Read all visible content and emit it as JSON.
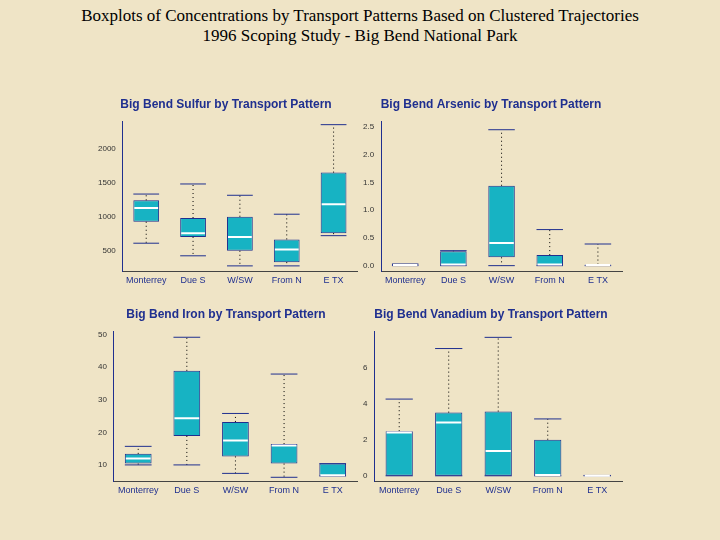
{
  "page_title": "Boxplots of Concentrations by Transport Patterns Based on Clustered Trajectories",
  "page_subtitle": "1996 Scoping Study - Big Bend National Park",
  "chart_data": [
    {
      "type": "boxplot",
      "title": "Big Bend Sulfur by Transport Pattern",
      "categories": [
        "Monterrey",
        "Due S",
        "W/SW",
        "From N",
        "E TX"
      ],
      "boxes": [
        {
          "min": 611,
          "q1": 926,
          "median": 1130,
          "q3": 1241,
          "max": 1333
        },
        {
          "min": 426,
          "q1": 704,
          "median": 759,
          "q3": 981,
          "max": 1481
        },
        {
          "min": 278,
          "q1": 500,
          "median": 704,
          "q3": 1000,
          "max": 1315
        },
        {
          "min": 278,
          "q1": 333,
          "median": 519,
          "q3": 667,
          "max": 1037
        },
        {
          "min": 722,
          "q1": 759,
          "median": 1185,
          "q3": 1648,
          "max": 2352
        }
      ],
      "color": "#17b3c3",
      "ylim": [
        200,
        2400
      ],
      "yticks": [
        500,
        1000,
        1500,
        2000
      ],
      "grid": false
    },
    {
      "type": "boxplot",
      "title": "Big Bend Arsenic by Transport Pattern",
      "categories": [
        "Monterrey",
        "Due S",
        "W/SW",
        "From N",
        "E TX"
      ],
      "boxes": [
        {
          "min": 0,
          "q1": 0,
          "median": 0.01,
          "q3": 0.03,
          "max": 0.03
        },
        {
          "min": 0,
          "q1": 0,
          "median": 0.02,
          "q3": 0.26,
          "max": 0.27
        },
        {
          "min": 0,
          "q1": 0.15,
          "median": 0.41,
          "q3": 1.44,
          "max": 2.45
        },
        {
          "min": 0,
          "q1": 0,
          "median": 0.02,
          "q3": 0.19,
          "max": 0.65
        },
        {
          "min": 0,
          "q1": 0,
          "median": 0.01,
          "q3": 0.02,
          "max": 0.39
        }
      ],
      "color": "#17b3c3",
      "ylim": [
        -0.1,
        2.6
      ],
      "yticks": [
        {
          "value": 0,
          "label": "0.0"
        },
        {
          "value": 0.5,
          "label": "0.5"
        },
        {
          "value": 1,
          "label": "1.0"
        },
        {
          "value": 1.5,
          "label": "1.5"
        },
        {
          "value": 2,
          "label": "2.0"
        },
        {
          "value": 2.5,
          "label": "2.5"
        }
      ],
      "grid": false
    },
    {
      "type": "boxplot",
      "title": "Big Bend Iron by Transport Pattern",
      "categories": [
        "Monterrey",
        "Due S",
        "W/SW",
        "From N",
        "E TX"
      ],
      "boxes": [
        {
          "min": 10,
          "q1": 10.4,
          "median": 12,
          "q3": 13.4,
          "max": 15.7
        },
        {
          "min": 10,
          "q1": 18.9,
          "median": 24.3,
          "q3": 38.9,
          "max": 49.2
        },
        {
          "min": 7.4,
          "q1": 12.6,
          "median": 17.5,
          "q3": 23.2,
          "max": 25.8
        },
        {
          "min": 6.2,
          "q1": 10.4,
          "median": 16,
          "q3": 16.4,
          "max": 37.9
        },
        {
          "min": 6.6,
          "q1": 6.6,
          "median": 6.8,
          "q3": 10.4,
          "max": 10.4
        }
      ],
      "color": "#17b3c3",
      "ylim": [
        5,
        51
      ],
      "yticks": [
        10,
        20,
        30,
        40,
        50
      ],
      "grid": false
    },
    {
      "type": "boxplot",
      "title": "Big Bend Vanadium by Transport Pattern",
      "categories": [
        "Monterrey",
        "Due S",
        "W/SW",
        "From N",
        "E TX"
      ],
      "boxes": [
        {
          "min": 0,
          "q1": 0,
          "median": 2.4,
          "q3": 2.47,
          "max": 4.25
        },
        {
          "min": 0,
          "q1": 0,
          "median": 2.95,
          "q3": 3.5,
          "max": 7.05
        },
        {
          "min": 0,
          "q1": 0,
          "median": 1.37,
          "q3": 3.56,
          "max": 7.67
        },
        {
          "min": 0,
          "q1": 0,
          "median": 0.05,
          "q3": 2.0,
          "max": 3.15
        },
        {
          "min": 0,
          "q1": 0,
          "median": 0,
          "q3": 0.02,
          "max": 0.02
        }
      ],
      "color": "#17b3c3",
      "ylim": [
        -0.3,
        8
      ],
      "yticks": [
        0,
        2,
        4,
        6
      ],
      "grid": false
    }
  ]
}
